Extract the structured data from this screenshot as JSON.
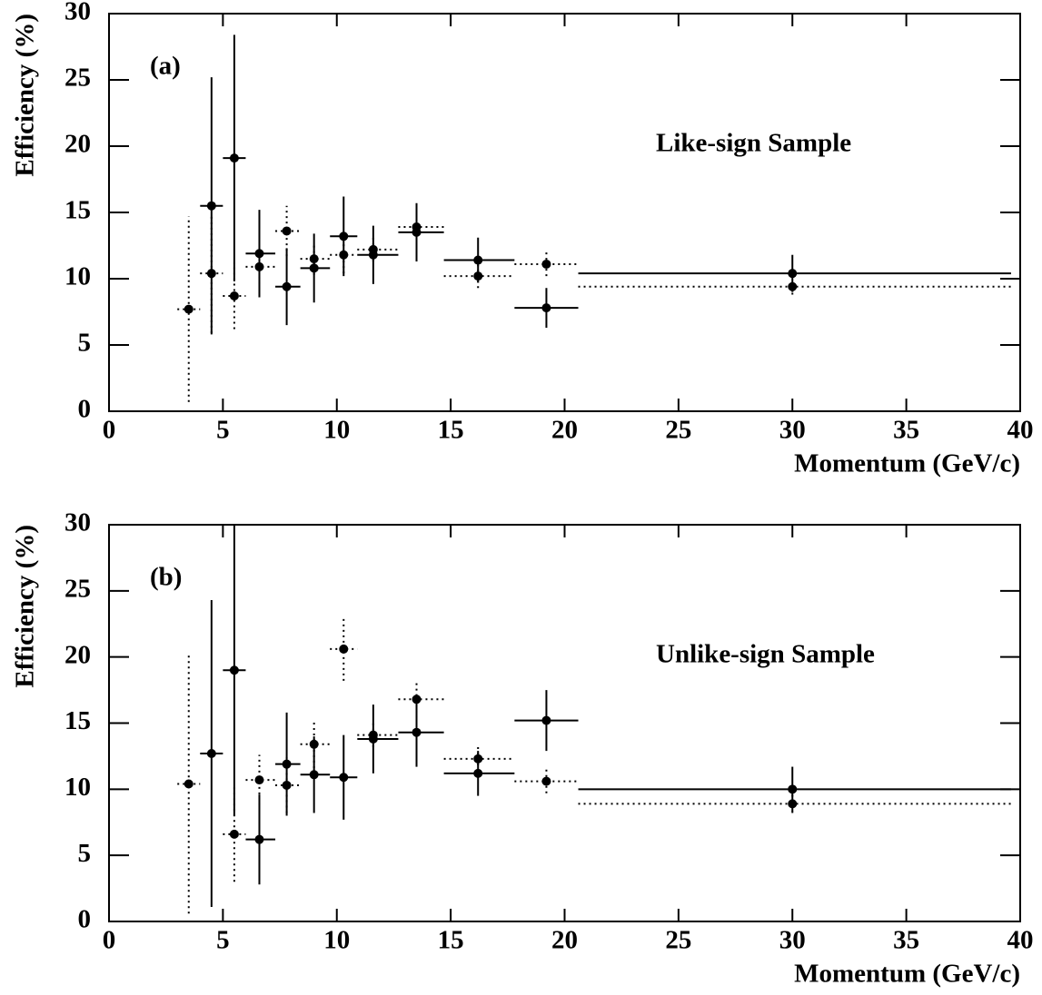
{
  "chart_data": [
    {
      "type": "scatter",
      "label": "(a)",
      "annotation": "Like-sign Sample",
      "xlabel": "Momentum (GeV/c)",
      "ylabel": "Efficiency (%)",
      "xlim": [
        0,
        40
      ],
      "ylim": [
        0,
        30
      ],
      "xticks": [
        0,
        5,
        10,
        15,
        20,
        25,
        30,
        35,
        40
      ],
      "yticks": [
        0,
        5,
        10,
        15,
        20,
        25,
        30
      ],
      "series": [
        {
          "color": "#000000",
          "style": "solid",
          "x": [
            4.5,
            5.5,
            6.6,
            7.8,
            9.0,
            10.3,
            11.6,
            13.5,
            16.2,
            19.2,
            30
          ],
          "values": [
            15.5,
            19.1,
            11.9,
            9.4,
            10.8,
            13.2,
            11.8,
            13.5,
            11.4,
            7.8,
            10.4
          ],
          "xlow": [
            4,
            5,
            6,
            7.3,
            8.4,
            9.7,
            10.9,
            12.7,
            14.7,
            17.8,
            20.6
          ],
          "xhigh": [
            5,
            6,
            7.3,
            8.4,
            9.7,
            10.9,
            12.7,
            14.7,
            17.8,
            20.6,
            39.6
          ],
          "yerr": [
            9.7,
            9.3,
            3.3,
            2.9,
            2.6,
            3.0,
            2.2,
            2.2,
            1.7,
            1.5,
            1.4
          ]
        },
        {
          "color": "#000000",
          "style": "dotted",
          "x": [
            3.5,
            4.5,
            5.5,
            6.6,
            7.8,
            9.0,
            10.3,
            11.6,
            13.5,
            16.2,
            19.2,
            30
          ],
          "values": [
            7.7,
            10.4,
            8.7,
            10.9,
            13.6,
            11.5,
            11.8,
            12.2,
            13.9,
            10.2,
            11.1,
            9.4
          ],
          "xlow": [
            3,
            4,
            5,
            6,
            7.3,
            8.4,
            9.7,
            10.9,
            12.7,
            14.7,
            17.8,
            20.6
          ],
          "xhigh": [
            4,
            5,
            6,
            7.3,
            8.4,
            9.7,
            10.9,
            12.7,
            14.7,
            17.8,
            20.6,
            39.6
          ],
          "yerr": [
            7.0,
            4.5,
            2.5,
            1.3,
            1.9,
            1.2,
            1.4,
            0.9,
            0.8,
            0.9,
            0.9,
            0.6
          ]
        }
      ]
    },
    {
      "type": "scatter",
      "label": "(b)",
      "annotation": "Unlike-sign Sample",
      "xlabel": "Momentum (GeV/c)",
      "ylabel": "Efficiency (%)",
      "xlim": [
        0,
        40
      ],
      "ylim": [
        0,
        30
      ],
      "xticks": [
        0,
        5,
        10,
        15,
        20,
        25,
        30,
        35,
        40
      ],
      "yticks": [
        0,
        5,
        10,
        15,
        20,
        25,
        30
      ],
      "series": [
        {
          "color": "#000000",
          "style": "solid",
          "x": [
            4.5,
            5.5,
            6.6,
            7.8,
            9.0,
            10.3,
            11.6,
            13.5,
            16.2,
            19.2,
            30
          ],
          "values": [
            12.7,
            19.0,
            6.2,
            11.9,
            11.1,
            10.9,
            13.8,
            14.3,
            11.2,
            15.2,
            10.0
          ],
          "xlow": [
            4,
            5,
            6,
            7.3,
            8.4,
            9.7,
            10.9,
            12.7,
            14.7,
            17.8,
            20.6
          ],
          "xhigh": [
            5,
            6,
            7.3,
            8.4,
            9.7,
            10.9,
            12.7,
            14.7,
            17.8,
            20.6,
            39.6
          ],
          "yerr": [
            11.6,
            11.0,
            3.4,
            3.9,
            2.9,
            3.2,
            2.6,
            2.6,
            1.7,
            2.3,
            1.7
          ]
        },
        {
          "color": "#000000",
          "style": "dotted",
          "x": [
            3.5,
            5.5,
            6.6,
            7.8,
            9.0,
            10.3,
            11.6,
            13.5,
            16.2,
            19.2,
            30
          ],
          "values": [
            10.4,
            6.6,
            10.7,
            10.3,
            13.4,
            20.6,
            14.1,
            16.8,
            12.3,
            10.6,
            8.9
          ],
          "xlow": [
            3,
            5,
            6,
            7.3,
            8.4,
            9.7,
            10.9,
            12.7,
            14.7,
            17.8,
            20.6
          ],
          "xhigh": [
            4,
            6,
            7.3,
            8.4,
            9.7,
            10.9,
            12.7,
            14.7,
            17.8,
            20.6,
            39.6
          ],
          "yerr": [
            9.8,
            3.6,
            1.9,
            2.1,
            1.8,
            2.4,
            0.9,
            1.4,
            0.9,
            0.9,
            0.7
          ]
        }
      ]
    }
  ]
}
